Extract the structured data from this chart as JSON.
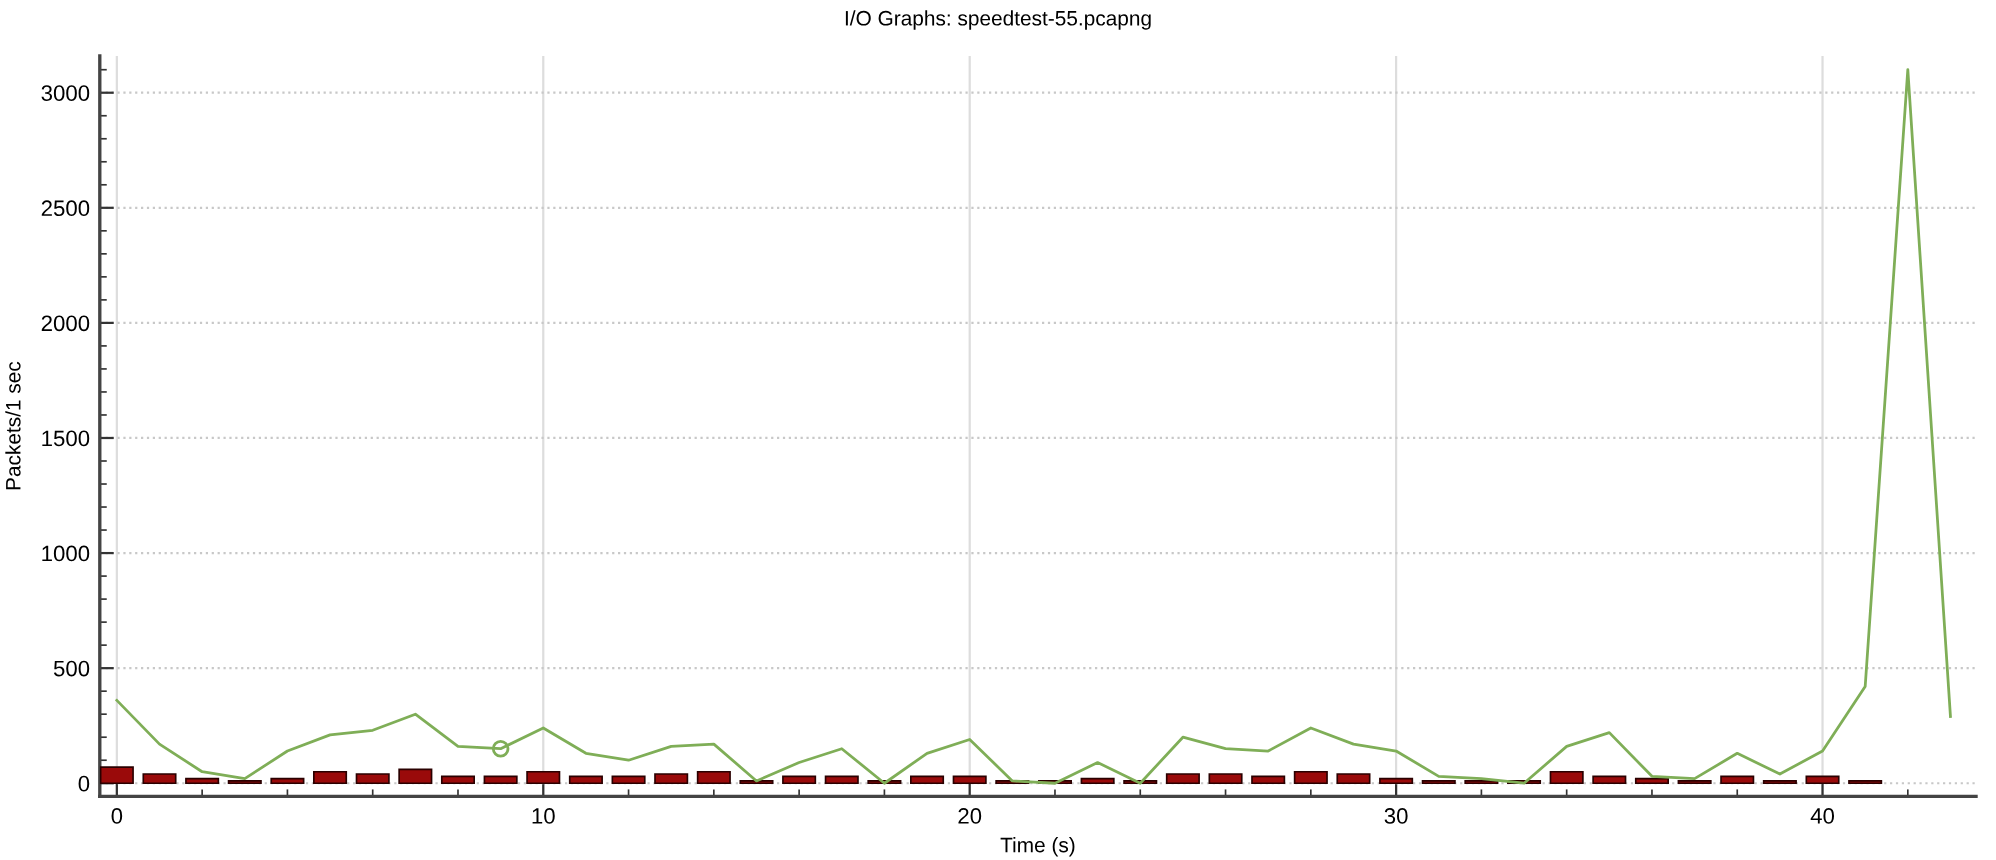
{
  "chart_data": {
    "type": "line",
    "title": "I/O Graphs: speedtest-55.pcapng",
    "xlabel": "Time (s)",
    "ylabel": "Packets/1 sec",
    "series": [
      {
        "type": "bar",
        "color": "#9a0a0a",
        "x": [
          0,
          1,
          2,
          3,
          4,
          5,
          6,
          7,
          8,
          9,
          10,
          11,
          12,
          13,
          14,
          15,
          16,
          17,
          18,
          19,
          20,
          21,
          22,
          23,
          24,
          25,
          26,
          27,
          28,
          29,
          30,
          31,
          32,
          33,
          34,
          35,
          36,
          37,
          38,
          39,
          40,
          41
        ],
        "values": [
          70,
          40,
          20,
          10,
          20,
          50,
          40,
          60,
          30,
          30,
          50,
          30,
          30,
          40,
          50,
          10,
          30,
          30,
          10,
          30,
          30,
          10,
          10,
          20,
          10,
          40,
          40,
          30,
          50,
          40,
          20,
          10,
          10,
          10,
          50,
          30,
          20,
          10,
          30,
          10,
          30,
          10
        ]
      },
      {
        "color": "#7fae57",
        "x": [
          0,
          1,
          2,
          3,
          4,
          5,
          6,
          7,
          8,
          9,
          10,
          11,
          12,
          13,
          14,
          15,
          16,
          17,
          18,
          19,
          20,
          21,
          22,
          23,
          24,
          25,
          26,
          27,
          28,
          29,
          30,
          31,
          32,
          33,
          34,
          35,
          36,
          37,
          38,
          39,
          40,
          41,
          42,
          43
        ],
        "values": [
          360,
          170,
          50,
          20,
          140,
          210,
          230,
          300,
          160,
          150,
          240,
          130,
          100,
          160,
          170,
          10,
          90,
          150,
          0,
          130,
          190,
          10,
          0,
          90,
          0,
          200,
          150,
          140,
          240,
          170,
          140,
          30,
          20,
          0,
          160,
          220,
          30,
          20,
          130,
          40,
          140,
          420,
          3100,
          290
        ]
      },
      {
        "type": "scatter",
        "color": "#7fae57",
        "marker": "circle",
        "x": [
          9
        ],
        "values": [
          150
        ]
      }
    ],
    "xlim": [
      -0.4,
      43.6
    ],
    "ylim": [
      -57,
      3160
    ],
    "xticks": [
      0,
      {
        "value": 2,
        "label": null
      },
      {
        "value": 4,
        "label": null
      },
      {
        "value": 6,
        "label": null
      },
      {
        "value": 8,
        "label": null
      },
      10,
      {
        "value": 12,
        "label": null
      },
      {
        "value": 14,
        "label": null
      },
      {
        "value": 16,
        "label": null
      },
      {
        "value": 18,
        "label": null
      },
      20,
      {
        "value": 22,
        "label": null
      },
      {
        "value": 24,
        "label": null
      },
      {
        "value": 26,
        "label": null
      },
      {
        "value": 28,
        "label": null
      },
      30,
      {
        "value": 32,
        "label": null
      },
      {
        "value": 34,
        "label": null
      },
      {
        "value": 36,
        "label": null
      },
      {
        "value": 38,
        "label": null
      },
      40,
      {
        "value": 42,
        "label": null
      }
    ],
    "yticks": [
      0,
      {
        "value": 100,
        "label": null
      },
      {
        "value": 200,
        "label": null
      },
      {
        "value": 300,
        "label": null
      },
      {
        "value": 400,
        "label": null
      },
      500,
      {
        "value": 600,
        "label": null
      },
      {
        "value": 700,
        "label": null
      },
      {
        "value": 800,
        "label": null
      },
      {
        "value": 900,
        "label": null
      },
      1000,
      {
        "value": 1100,
        "label": null
      },
      {
        "value": 1200,
        "label": null
      },
      {
        "value": 1300,
        "label": null
      },
      {
        "value": 1400,
        "label": null
      },
      1500,
      {
        "value": 1600,
        "label": null
      },
      {
        "value": 1700,
        "label": null
      },
      {
        "value": 1800,
        "label": null
      },
      {
        "value": 1900,
        "label": null
      },
      2000,
      {
        "value": 2100,
        "label": null
      },
      {
        "value": 2200,
        "label": null
      },
      {
        "value": 2300,
        "label": null
      },
      {
        "value": 2400,
        "label": null
      },
      2500,
      {
        "value": 2600,
        "label": null
      },
      {
        "value": 2700,
        "label": null
      },
      {
        "value": 2800,
        "label": null
      },
      {
        "value": 2900,
        "label": null
      },
      3000,
      {
        "value": 3100,
        "label": null
      }
    ],
    "grid": true
  }
}
